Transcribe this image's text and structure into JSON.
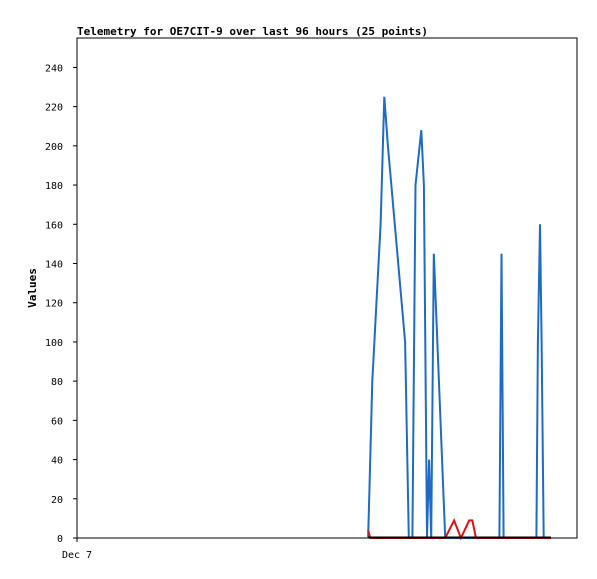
{
  "chart_data": {
    "type": "line",
    "title": "Telemetry for OE7CIT-9 over last 96 hours (25 points)",
    "xlabel": "",
    "ylabel": "Values",
    "ylim": [
      0,
      255
    ],
    "xlim": [
      0,
      96
    ],
    "y_ticks": [
      0,
      20,
      40,
      60,
      80,
      100,
      120,
      140,
      160,
      180,
      200,
      220,
      240
    ],
    "x_tick_labels": [
      {
        "x": 0,
        "label": "Dec 7"
      }
    ],
    "grid": false,
    "legend": "none",
    "series": [
      {
        "color": "#1f6bc4",
        "x": [
          55.9,
          56.1,
          56.7,
          58.3,
          59.0,
          59.7,
          63.0,
          63.7,
          64.4,
          65.0,
          66.1,
          66.6,
          67.2,
          67.6,
          68.0,
          68.5,
          70.7,
          71.5,
          81.1,
          81.5,
          81.9,
          82.3,
          82.6,
          88.2,
          88.5,
          88.9,
          89.2,
          89.6,
          90.5,
          90.9
        ],
        "y": [
          0,
          20,
          80,
          160,
          225,
          200,
          100,
          0,
          0,
          180,
          208,
          180,
          0,
          40,
          0,
          145,
          0,
          0,
          0,
          145,
          0,
          0,
          0,
          0,
          100,
          160,
          100,
          0,
          0,
          0
        ]
      },
      {
        "color": "#e01010",
        "x": [
          55.9,
          56.3,
          56.9,
          70.7,
          72.4,
          73.7,
          75.3,
          75.9,
          76.6,
          91.0
        ],
        "y": [
          4,
          0,
          0,
          0,
          9,
          0,
          9,
          9,
          0,
          0
        ]
      }
    ],
    "baseline_color": "#000000"
  }
}
